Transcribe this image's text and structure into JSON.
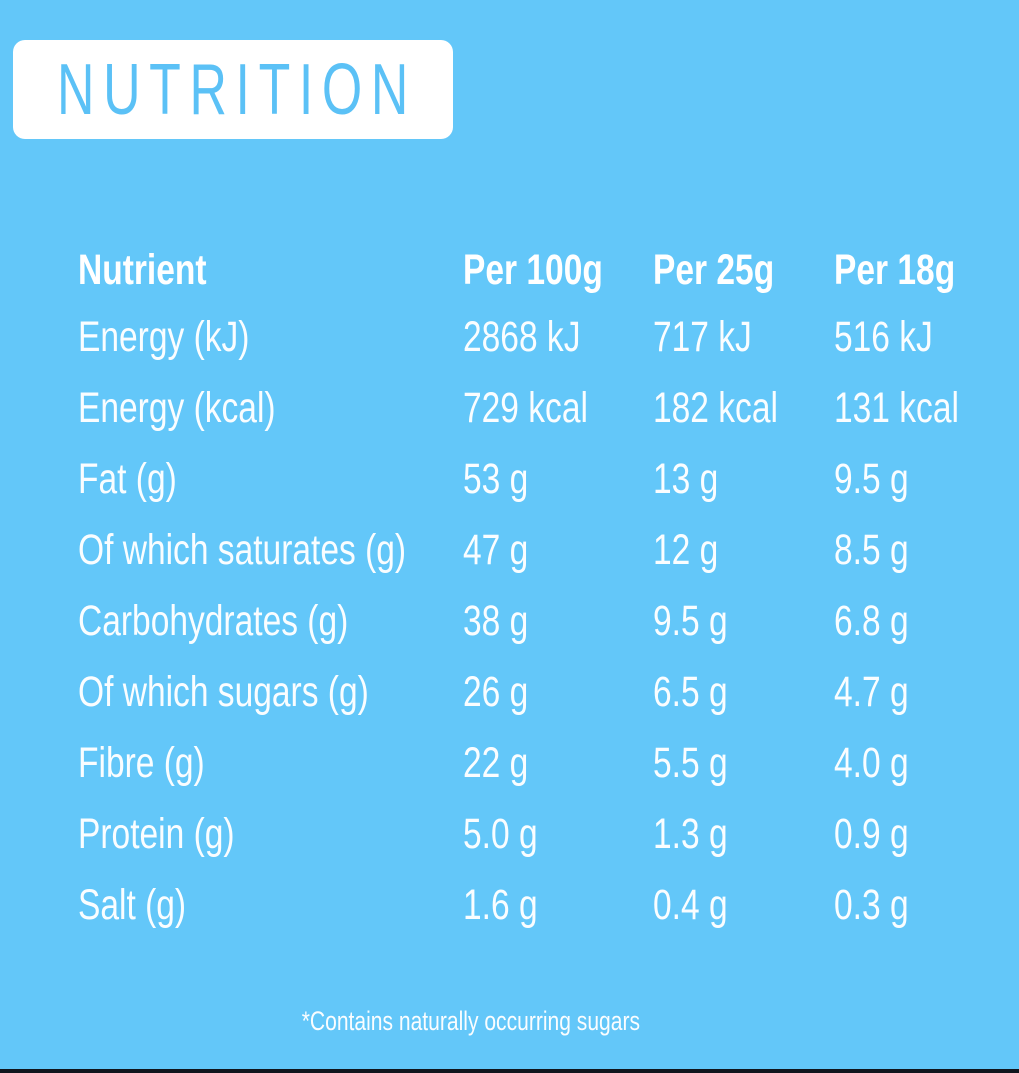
{
  "page": {
    "title": "NUTRITION",
    "footnote": "*Contains naturally occurring sugars"
  },
  "colors": {
    "background": "#63C7F9",
    "title_box": "#FFFFFF",
    "title_text": "#5BC1F6",
    "table_text": "#FFFFFF",
    "bottom_bar": "#10151D"
  },
  "chart_data": {
    "type": "table",
    "title": "NUTRITION",
    "columns": [
      "Nutrient",
      "Per 100g",
      "Per 25g",
      "Per 18g"
    ],
    "rows": [
      {
        "label": "Energy (kJ)",
        "values": [
          "2868 kJ",
          "717 kJ",
          "516 kJ"
        ]
      },
      {
        "label": "Energy (kcal)",
        "values": [
          "729 kcal",
          "182 kcal",
          "131 kcal"
        ]
      },
      {
        "label": "Fat (g)",
        "values": [
          "53 g",
          "13 g",
          "9.5 g"
        ]
      },
      {
        "label": "Of which saturates (g)",
        "values": [
          "47 g",
          "12 g",
          "8.5 g"
        ]
      },
      {
        "label": "Carbohydrates (g)",
        "values": [
          "38 g",
          "9.5 g",
          "6.8 g"
        ]
      },
      {
        "label": "Of which sugars (g)",
        "values": [
          "26 g",
          "6.5 g",
          "4.7 g"
        ]
      },
      {
        "label": "Fibre (g)",
        "values": [
          "22 g",
          "5.5 g",
          "4.0 g"
        ]
      },
      {
        "label": "Protein (g)",
        "values": [
          "5.0 g",
          "1.3 g",
          "0.9 g"
        ]
      },
      {
        "label": "Salt (g)",
        "values": [
          "1.6 g",
          "0.4 g",
          "0.3 g"
        ]
      }
    ],
    "footnote": "*Contains naturally occurring sugars"
  }
}
